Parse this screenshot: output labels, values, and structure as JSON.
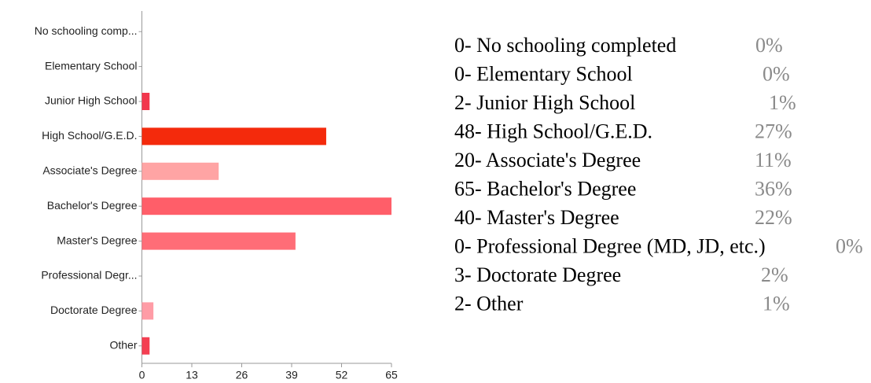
{
  "chart_data": {
    "type": "bar",
    "categories": [
      "No schooling comp...",
      "Elementary School",
      "Junior High School",
      "High School/G.E.D.",
      "Associate's Degree",
      "Bachelor's Degree",
      "Master's Degree",
      "Professional Degr...",
      "Doctorate Degree",
      "Other"
    ],
    "values": [
      0,
      0,
      2,
      48,
      20,
      65,
      40,
      0,
      3,
      2
    ],
    "colors": [
      "#f44c5c",
      "#f44c5c",
      "#f2364c",
      "#f42a0c",
      "#ffa4a4",
      "#ff5e69",
      "#ff6d77",
      "#ff8e98",
      "#ff9ca6",
      "#f43f52"
    ],
    "xlim": [
      0,
      65
    ],
    "xticks": [
      0,
      13,
      26,
      39,
      52,
      65
    ],
    "orientation": "horizontal"
  },
  "summary": [
    {
      "text": "0- No schooling completed",
      "percent": "0%"
    },
    {
      "text": "0- Elementary School",
      "percent": "0%"
    },
    {
      "text": "2- Junior High School",
      "percent": "1%"
    },
    {
      "text": "48- High School/G.E.D.",
      "percent": "27%"
    },
    {
      "text": "20- Associate's Degree",
      "percent": "11%"
    },
    {
      "text": "65- Bachelor's Degree",
      "percent": "36%"
    },
    {
      "text": "40- Master's Degree",
      "percent": "22%"
    },
    {
      "text": "0- Professional Degree (MD, JD, etc.)",
      "percent": "0%"
    },
    {
      "text": "3- Doctorate Degree",
      "percent": "2%"
    },
    {
      "text": "2- Other",
      "percent": "1%"
    }
  ]
}
